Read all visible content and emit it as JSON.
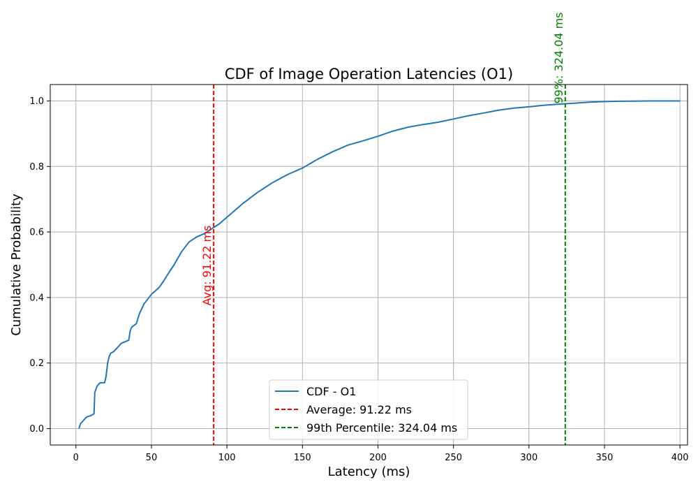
{
  "chart_data": {
    "type": "line",
    "title": "CDF of Image Operation Latencies (O1)",
    "xlabel": "Latency (ms)",
    "ylabel": "Cumulative Probability",
    "xlim": [
      -17,
      405
    ],
    "ylim": [
      -0.05,
      1.05
    ],
    "xticks": [
      0,
      50,
      100,
      150,
      200,
      250,
      300,
      350,
      400
    ],
    "yticks": [
      0.0,
      0.2,
      0.4,
      0.6,
      0.8,
      1.0
    ],
    "xtick_labels": [
      "0",
      "50",
      "100",
      "150",
      "200",
      "250",
      "300",
      "350",
      "400"
    ],
    "ytick_labels": [
      "0.0",
      "0.2",
      "0.4",
      "0.6",
      "0.8",
      "1.0"
    ],
    "grid": true,
    "legend_position": "lower center",
    "series": [
      {
        "name": "CDF - O1",
        "color": "#1f77b4",
        "x": [
          2,
          3,
          5,
          7,
          10,
          12,
          12.5,
          14,
          16,
          19,
          20,
          21,
          22,
          23,
          25,
          28,
          30,
          35,
          36,
          37,
          40,
          42,
          44,
          45,
          50,
          55,
          58,
          60,
          65,
          70,
          75,
          80,
          85,
          90,
          95,
          100,
          110,
          120,
          130,
          140,
          150,
          160,
          170,
          180,
          190,
          200,
          210,
          220,
          230,
          240,
          250,
          260,
          270,
          280,
          290,
          300,
          310,
          320,
          330,
          340,
          350,
          360,
          370,
          380,
          400
        ],
        "y": [
          0.0,
          0.015,
          0.025,
          0.035,
          0.04,
          0.045,
          0.11,
          0.13,
          0.14,
          0.14,
          0.16,
          0.2,
          0.22,
          0.23,
          0.235,
          0.25,
          0.26,
          0.27,
          0.3,
          0.31,
          0.32,
          0.35,
          0.37,
          0.38,
          0.41,
          0.43,
          0.45,
          0.465,
          0.5,
          0.54,
          0.57,
          0.585,
          0.595,
          0.61,
          0.625,
          0.645,
          0.685,
          0.72,
          0.75,
          0.775,
          0.795,
          0.822,
          0.845,
          0.865,
          0.878,
          0.892,
          0.908,
          0.92,
          0.928,
          0.935,
          0.945,
          0.955,
          0.963,
          0.972,
          0.978,
          0.982,
          0.987,
          0.99,
          0.993,
          0.996,
          0.998,
          0.999,
          0.9995,
          1.0,
          1.0
        ]
      }
    ],
    "reference_lines": [
      {
        "label": "Average: 91.22 ms",
        "annotation": "Avg: 91.22 ms",
        "x": 91.22,
        "color": "#ff0000"
      },
      {
        "label": "99th Percentile: 324.04 ms",
        "annotation": "99%: 324.04 ms",
        "x": 324.04,
        "color": "#008000"
      }
    ],
    "grid_color": "#b0b0b0"
  }
}
